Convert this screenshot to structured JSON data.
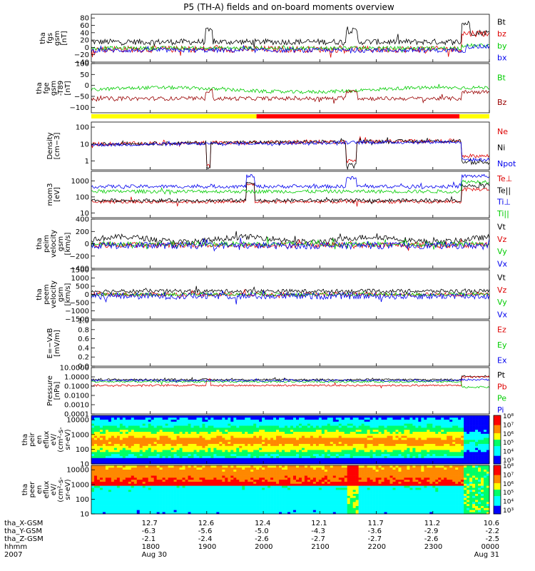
{
  "chart_data": {
    "type": "line",
    "title": "P5 (TH-A) fields and on-board moments overview",
    "time_axis": {
      "range": [
        "2007-08-30 17:00",
        "2007-08-31 00:00"
      ],
      "rows": [
        {
          "name": "tha_X-GSM",
          "values": [
            "12.7",
            "12.6",
            "12.4",
            "12.1",
            "11.7",
            "11.2",
            "10.6"
          ]
        },
        {
          "name": "tha_Y-GSM",
          "values": [
            "-6.3",
            "-5.6",
            "-5.0",
            "-4.3",
            "-3.6",
            "-2.9",
            "-2.2"
          ]
        },
        {
          "name": "tha_Z-GSM",
          "values": [
            "-2.1",
            "-2.4",
            "-2.6",
            "-2.7",
            "-2.7",
            "-2.6",
            "-2.5"
          ]
        },
        {
          "name": "hhmm",
          "values": [
            "1800",
            "1900",
            "2000",
            "2100",
            "2200",
            "2300",
            "0000"
          ]
        }
      ],
      "year": "2007",
      "start_date": "Aug 30",
      "end_date": "Aug 31"
    },
    "mode_bar": {
      "colors": [
        "#ffff00",
        "#ff0000",
        "#ffff00"
      ]
    },
    "panels": [
      {
        "id": "fgs",
        "ylabel": [
          "tha",
          "fgs",
          "gsm",
          "[nT]"
        ],
        "ylim": [
          -40,
          90
        ],
        "ticks": [
          "80",
          "60",
          "40",
          "20",
          "0",
          "−20",
          "−40"
        ],
        "tick_values": [
          80,
          60,
          40,
          20,
          0,
          -20,
          -40
        ],
        "series": [
          {
            "name": "Bt",
            "color": "#000000"
          },
          {
            "name": "bz",
            "color": "#dd0000"
          },
          {
            "name": "by",
            "color": "#00cc00"
          },
          {
            "name": "bx",
            "color": "#0000ee"
          }
        ]
      },
      {
        "id": "fge",
        "ylabel": [
          "tha",
          "fge",
          "gsm",
          "-T89",
          "[nT]"
        ],
        "ylim": [
          -125,
          100
        ],
        "ticks": [
          "100",
          "50",
          "0",
          "−50",
          "−100"
        ],
        "tick_values": [
          100,
          50,
          0,
          -50,
          -100
        ],
        "series": [
          {
            "name": "Bt",
            "color": "#00cc00"
          },
          {
            "name": "Bz",
            "color": "#990000"
          }
        ]
      },
      {
        "id": "density",
        "ylabel": [
          "Density",
          "[cm−3]"
        ],
        "log": true,
        "ylim": [
          0.3,
          200
        ],
        "ticks": [
          "100",
          "10",
          "1"
        ],
        "tick_values": [
          100,
          10,
          1
        ],
        "series": [
          {
            "name": "Ne",
            "color": "#dd0000"
          },
          {
            "name": "Ni",
            "color": "#000000"
          },
          {
            "name": "Npot",
            "color": "#0000ee"
          }
        ]
      },
      {
        "id": "temperature",
        "ylabel": [
          "mom3",
          "[eV]"
        ],
        "log": true,
        "ylim": [
          5,
          4000
        ],
        "ticks": [
          "1000",
          "100",
          "10"
        ],
        "tick_values": [
          1000,
          100,
          10
        ],
        "series": [
          {
            "name": "Te⊥",
            "color": "#dd0000"
          },
          {
            "name": "Te||",
            "color": "#000000"
          },
          {
            "name": "Ti⊥",
            "color": "#0000ee"
          },
          {
            "name": "Ti||",
            "color": "#00cc00"
          }
        ]
      },
      {
        "id": "peim_velocity",
        "ylabel": [
          "tha",
          "peim",
          "velocity",
          "gsm",
          "[km/s]"
        ],
        "ylim": [
          -400,
          400
        ],
        "ticks": [
          "400",
          "200",
          "0",
          "−200",
          "−400"
        ],
        "tick_values": [
          400,
          200,
          0,
          -200,
          -400
        ],
        "series": [
          {
            "name": "Vt",
            "color": "#000000"
          },
          {
            "name": "Vz",
            "color": "#dd0000"
          },
          {
            "name": "Vy",
            "color": "#00cc00"
          },
          {
            "name": "Vx",
            "color": "#0000ee"
          }
        ]
      },
      {
        "id": "peem_velocity",
        "ylabel": [
          "tha",
          "peem",
          "velocity",
          "gsm",
          "[km/s]"
        ],
        "ylim": [
          -1500,
          1500
        ],
        "ticks": [
          "1500",
          "1000",
          "500",
          "0",
          "−500",
          "−1000",
          "−1500"
        ],
        "tick_values": [
          1500,
          1000,
          500,
          0,
          -500,
          -1000,
          -1500
        ],
        "series": [
          {
            "name": "Vt",
            "color": "#000000"
          },
          {
            "name": "Vz",
            "color": "#dd0000"
          },
          {
            "name": "Vy",
            "color": "#00cc00"
          },
          {
            "name": "Vx",
            "color": "#0000ee"
          }
        ]
      },
      {
        "id": "efield",
        "ylabel": [
          "E=−VxB",
          "[mV/m]"
        ],
        "ylim": [
          0,
          1
        ],
        "ticks": [
          "1.0",
          "0.8",
          "0.6",
          "0.4",
          "0.2",
          "0.0"
        ],
        "tick_values": [
          1.0,
          0.8,
          0.6,
          0.4,
          0.2,
          0.0
        ],
        "series": [
          {
            "name": "Ez",
            "color": "#dd0000"
          },
          {
            "name": "Ey",
            "color": "#00cc00"
          },
          {
            "name": "Ex",
            "color": "#0000ee"
          }
        ]
      },
      {
        "id": "pressure",
        "ylabel": [
          "Pressure",
          "[nPa]"
        ],
        "log": true,
        "ylim": [
          0.0001,
          10
        ],
        "ticks": [
          "10.0000",
          "1.0000",
          "0.1000",
          "0.0100",
          "0.0010",
          "0.0001"
        ],
        "tick_values": [
          10,
          1,
          0.1,
          0.01,
          0.001,
          0.0001
        ],
        "series": [
          {
            "name": "Pt",
            "color": "#000000"
          },
          {
            "name": "Pb",
            "color": "#dd0000"
          },
          {
            "name": "Pe",
            "color": "#00cc00"
          },
          {
            "name": "Pi",
            "color": "#0000ee"
          }
        ]
      },
      {
        "id": "peir_spectrogram",
        "type": "heatmap",
        "ylabel": [
          "tha",
          "peir",
          "en",
          "eflux",
          "eV/",
          "(cm²-s-",
          "sr-eV)"
        ],
        "log": true,
        "ylim": [
          10,
          20000
        ],
        "ticks": [
          "10000",
          "1000",
          "100",
          "10"
        ],
        "tick_values": [
          10000,
          1000,
          100,
          10
        ],
        "colorbar": [
          "10⁸",
          "10⁷",
          "10⁶",
          "10⁵",
          "10⁴",
          "10³"
        ]
      },
      {
        "id": "peer_spectrogram",
        "type": "heatmap",
        "ylabel": [
          "tha",
          "peer",
          "en",
          "eflux",
          "eV/",
          "(cm²-s-",
          "sr-eV)"
        ],
        "log": true,
        "ylim": [
          10,
          20000
        ],
        "ticks": [
          "10000",
          "1000",
          "100",
          "10"
        ],
        "tick_values": [
          10000,
          1000,
          100,
          10
        ],
        "colorbar": [
          "10⁸",
          "10⁷",
          "10⁶",
          "10⁵",
          "10⁴",
          "10³"
        ]
      }
    ]
  }
}
